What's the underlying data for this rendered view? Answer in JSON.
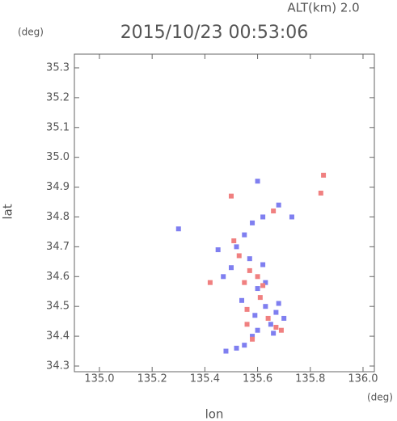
{
  "chart_data": {
    "type": "scatter",
    "title": "2015/10/23 00:53:06",
    "altitude_label": "ALT(km) 2.0",
    "x_label": "lon",
    "y_label": "lat",
    "x_unit": "(deg)",
    "y_unit": "(deg)",
    "xlim": [
      134.905,
      136.043
    ],
    "ylim": [
      34.281,
      35.346
    ],
    "xticks": [
      {
        "value": 135,
        "label": "135.0"
      },
      135.2,
      135.4,
      135.6,
      135.8,
      {
        "value": 136,
        "label": "136.0"
      }
    ],
    "yticks": [
      34.3,
      34.4,
      34.5,
      34.6,
      34.7,
      34.8,
      34.9,
      {
        "value": 35,
        "label": "35.0"
      },
      35.1,
      35.2,
      35.3
    ],
    "series": [
      {
        "color": "#7f7ff0",
        "x": [
          135.6,
          135.62,
          135.58,
          135.68,
          135.52,
          135.57,
          135.62,
          135.5,
          135.6,
          135.47,
          135.63,
          135.67,
          135.7,
          135.65,
          135.58,
          135.55,
          135.52,
          135.48,
          135.6,
          135.66,
          135.54,
          135.45,
          135.55,
          135.3,
          135.73,
          135.63,
          135.59,
          135.68
        ],
        "y": [
          34.92,
          34.8,
          34.78,
          34.84,
          34.7,
          34.66,
          34.64,
          34.63,
          34.56,
          34.6,
          34.5,
          34.48,
          34.46,
          34.44,
          34.4,
          34.37,
          34.36,
          34.35,
          34.42,
          34.41,
          34.52,
          34.69,
          34.74,
          34.76,
          34.8,
          34.58,
          34.47,
          34.51
        ]
      },
      {
        "color": "#f08080",
        "x": [
          135.5,
          135.57,
          135.53,
          135.6,
          135.55,
          135.62,
          135.67,
          135.69,
          135.64,
          135.56,
          135.58,
          135.85,
          135.84,
          135.42,
          135.51,
          135.66,
          135.56,
          135.61
        ],
        "y": [
          34.87,
          34.62,
          34.67,
          34.6,
          34.58,
          34.57,
          34.43,
          34.42,
          34.46,
          34.49,
          34.39,
          34.94,
          34.88,
          34.58,
          34.72,
          34.82,
          34.44,
          34.53
        ]
      }
    ]
  }
}
